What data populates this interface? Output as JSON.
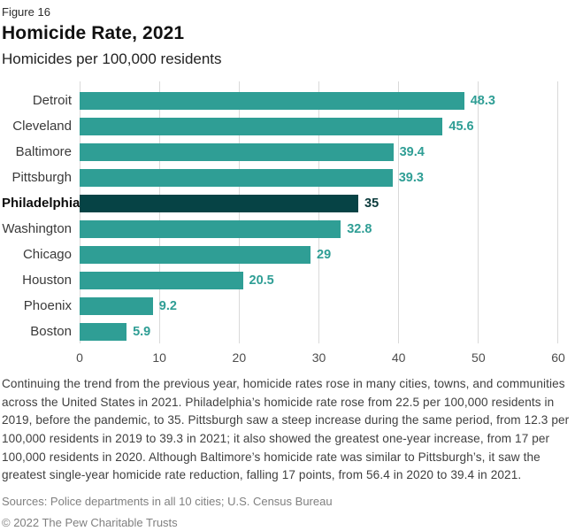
{
  "figure_label": "Figure 16",
  "title": "Homicide Rate, 2021",
  "subtitle": "Homicides per 100,000 residents",
  "chart_data": {
    "type": "bar",
    "orientation": "horizontal",
    "title": "Homicide Rate, 2021",
    "subtitle": "Homicides per 100,000 residents",
    "categories": [
      "Detroit",
      "Cleveland",
      "Baltimore",
      "Pittsburgh",
      "Philadelphia",
      "Washington",
      "Chicago",
      "Houston",
      "Phoenix",
      "Boston"
    ],
    "values": [
      48.3,
      45.6,
      39.4,
      39.3,
      35,
      32.8,
      29,
      20.5,
      9.2,
      5.9
    ],
    "value_labels": [
      "48.3",
      "45.6",
      "39.4",
      "39.3",
      "35",
      "32.8",
      "29",
      "20.5",
      "9.2",
      "5.9"
    ],
    "highlight_category": "Philadelphia",
    "xlim": [
      0,
      60
    ],
    "x_ticks": [
      "0",
      "10",
      "20",
      "30",
      "40",
      "50",
      "60"
    ],
    "grid": true,
    "legend": false,
    "colors": {
      "bar": "#2f9e95",
      "highlight_bar": "#064345",
      "value_label": "#2f9e95",
      "highlight_value_label": "#0b3b3c",
      "gridline": "#d9d9d9"
    }
  },
  "description": "Continuing the trend from the previous year, homicide rates rose in many cities, towns, and communities across the United States in 2021. Philadelphia’s homicide rate rose from 22.5 per 100,000 residents in 2019, before the pandemic, to 35. Pittsburgh saw a steep increase during the same period, from 12.3 per 100,000 residents in 2019 to 39.3 in 2021; it also showed the greatest one-year increase, from 17 per 100,000 residents in 2020. Although Baltimore’s homicide rate was similar to Pittsburgh’s, it saw the greatest single-year homicide rate reduction, falling 17 points, from 56.4 in 2020 to 39.4 in 2021.",
  "footer": {
    "sources": "Sources: Police departments in all 10 cities; U.S. Census Bureau",
    "copyright": "© 2022 The Pew Charitable Trusts"
  }
}
